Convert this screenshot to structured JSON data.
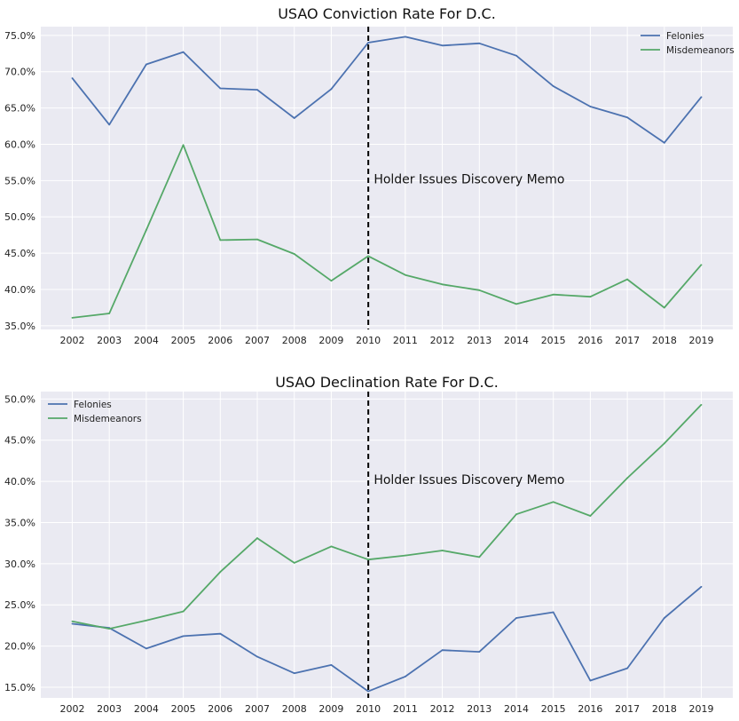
{
  "chart_data": [
    {
      "type": "line",
      "title": "USAO Conviction Rate For D.C.",
      "xlabel": "",
      "ylabel": "",
      "x": [
        2002,
        2003,
        2004,
        2005,
        2006,
        2007,
        2008,
        2009,
        2010,
        2011,
        2012,
        2013,
        2014,
        2015,
        2016,
        2017,
        2018,
        2019
      ],
      "ylim": [
        34.5,
        76.2
      ],
      "yticks": [
        35,
        40,
        45,
        50,
        55,
        60,
        65,
        70,
        75
      ],
      "ytick_format": "%",
      "grid": true,
      "legend": "top-right",
      "series": [
        {
          "name": "Felonies",
          "color": "#4c72b0",
          "values": [
            69.1,
            62.7,
            71.0,
            72.7,
            67.7,
            67.5,
            63.6,
            67.6,
            74.0,
            74.8,
            73.6,
            73.9,
            72.2,
            68.0,
            65.2,
            63.7,
            60.2,
            66.5
          ]
        },
        {
          "name": "Misdemeanors",
          "color": "#55a868",
          "values": [
            36.1,
            36.7,
            48.2,
            59.9,
            46.8,
            46.9,
            44.9,
            41.2,
            44.6,
            42.0,
            40.7,
            39.9,
            38.0,
            39.3,
            39.0,
            41.4,
            37.5,
            43.4
          ]
        }
      ],
      "vline": {
        "x": 2010,
        "color": "#000000",
        "style": "dashed"
      },
      "annotation": {
        "text": "Holder Issues Discovery Memo",
        "x": 2010.1,
        "y": 55.2
      }
    },
    {
      "type": "line",
      "title": "USAO Declination Rate For D.C.",
      "xlabel": "",
      "ylabel": "",
      "x": [
        2002,
        2003,
        2004,
        2005,
        2006,
        2007,
        2008,
        2009,
        2010,
        2011,
        2012,
        2013,
        2014,
        2015,
        2016,
        2017,
        2018,
        2019
      ],
      "ylim": [
        13.7,
        50.9
      ],
      "yticks": [
        15,
        20,
        25,
        30,
        35,
        40,
        45,
        50
      ],
      "ytick_format": "%",
      "grid": true,
      "legend": "top-left",
      "series": [
        {
          "name": "Felonies",
          "color": "#4c72b0",
          "values": [
            22.7,
            22.2,
            19.7,
            21.2,
            21.5,
            18.7,
            16.7,
            17.7,
            14.5,
            16.3,
            19.5,
            19.3,
            23.4,
            24.1,
            15.8,
            17.3,
            23.4,
            27.2
          ]
        },
        {
          "name": "Misdemeanors",
          "color": "#55a868",
          "values": [
            23.0,
            22.1,
            23.1,
            24.2,
            29.0,
            33.1,
            30.1,
            32.1,
            30.5,
            31.0,
            31.6,
            30.8,
            36.0,
            37.5,
            35.8,
            40.4,
            44.6,
            49.3
          ]
        }
      ],
      "vline": {
        "x": 2010,
        "color": "#000000",
        "style": "dashed"
      },
      "annotation": {
        "text": "Holder Issues Discovery Memo",
        "x": 2010.1,
        "y": 40.2
      }
    }
  ]
}
